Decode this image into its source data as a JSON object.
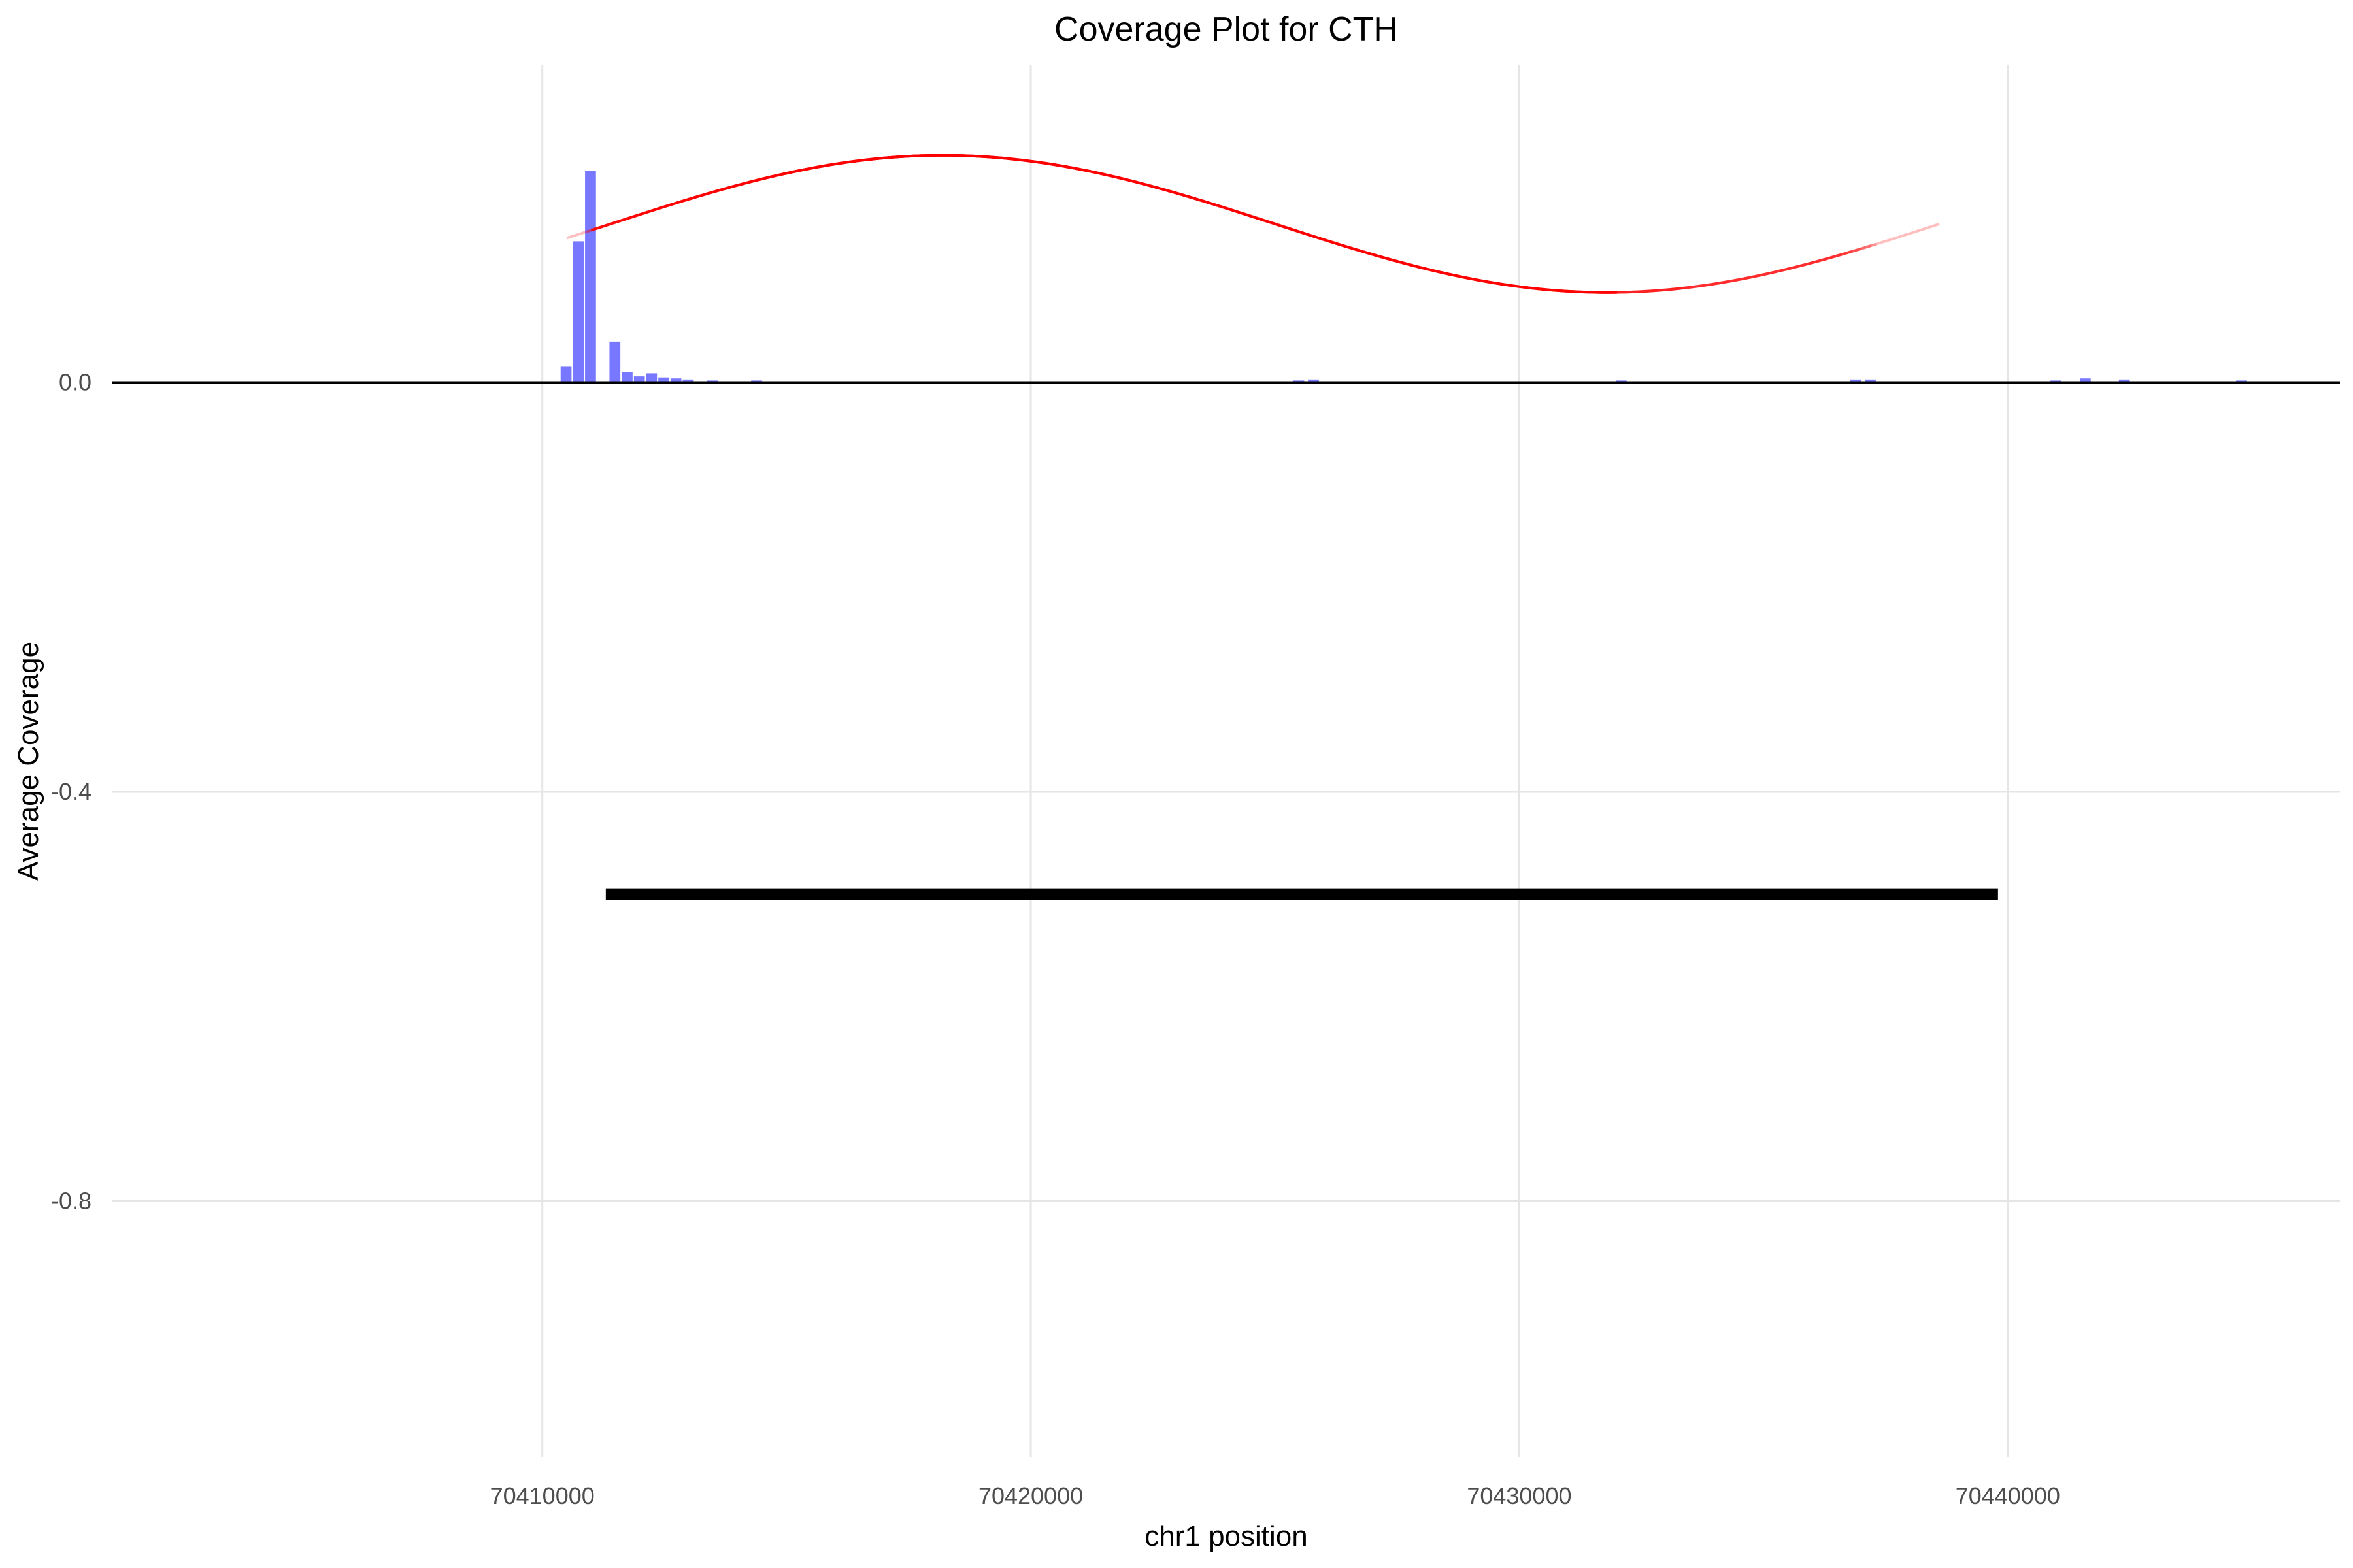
{
  "chart_data": {
    "type": "bar",
    "title": "Coverage Plot for CTH",
    "xlabel": "chr1 position",
    "ylabel": "Average Coverage",
    "xlim": [
      70401200,
      70446800
    ],
    "ylim": [
      -1.05,
      0.31
    ],
    "x_ticks": [
      70410000,
      70420000,
      70430000,
      70440000
    ],
    "x_tick_labels": [
      "70410000",
      "70420000",
      "70430000",
      "70440000"
    ],
    "y_ticks": [
      0.0,
      -0.4,
      -0.8
    ],
    "y_tick_labels": [
      "0.0",
      "-0.4",
      "-0.8"
    ],
    "grid": true,
    "legend": "none",
    "colors": {
      "coverage": "#7777ff",
      "junction": "#ff0000",
      "gene": "#000000",
      "grid": "#e5e5e5"
    },
    "coverage": {
      "bin_width": 250,
      "bins": [
        {
          "x": 70405400,
          "y": 0.001
        },
        {
          "x": 70406200,
          "y": 0.001
        },
        {
          "x": 70410500,
          "y": 0.016
        },
        {
          "x": 70410750,
          "y": 0.138
        },
        {
          "x": 70411000,
          "y": 0.207
        },
        {
          "x": 70411500,
          "y": 0.04
        },
        {
          "x": 70411750,
          "y": 0.01
        },
        {
          "x": 70412000,
          "y": 0.006
        },
        {
          "x": 70412250,
          "y": 0.009
        },
        {
          "x": 70412500,
          "y": 0.005
        },
        {
          "x": 70412750,
          "y": 0.004
        },
        {
          "x": 70413000,
          "y": 0.003
        },
        {
          "x": 70413500,
          "y": 0.002
        },
        {
          "x": 70414400,
          "y": 0.002
        },
        {
          "x": 70425500,
          "y": 0.002
        },
        {
          "x": 70425800,
          "y": 0.003
        },
        {
          "x": 70429000,
          "y": 0.001
        },
        {
          "x": 70432100,
          "y": 0.002
        },
        {
          "x": 70436900,
          "y": 0.003
        },
        {
          "x": 70437200,
          "y": 0.003
        },
        {
          "x": 70438600,
          "y": 0.001
        },
        {
          "x": 70441000,
          "y": 0.002
        },
        {
          "x": 70441600,
          "y": 0.004
        },
        {
          "x": 70442400,
          "y": 0.003
        },
        {
          "x": 70444800,
          "y": 0.002
        }
      ]
    },
    "junctions": [
      {
        "start": 70410500,
        "end": 70428200,
        "opacity": 0.25
      },
      {
        "start": 70410900,
        "end": 70427800,
        "opacity": 0.25
      },
      {
        "start": 70411000,
        "end": 70432000,
        "opacity": 0.9
      },
      {
        "start": 70411200,
        "end": 70429000,
        "opacity": 0.25
      },
      {
        "start": 70411500,
        "end": 70433400,
        "opacity": 0.25
      },
      {
        "start": 70411800,
        "end": 70436600,
        "opacity": 0.25
      },
      {
        "start": 70412200,
        "end": 70437000,
        "opacity": 0.25
      },
      {
        "start": 70412700,
        "end": 70436800,
        "opacity": 0.25
      },
      {
        "start": 70413100,
        "end": 70437200,
        "opacity": 0.25
      },
      {
        "start": 70413700,
        "end": 70438600,
        "opacity": 0.25
      },
      {
        "start": 70414400,
        "end": 70437300,
        "opacity": 0.25
      }
    ],
    "gene_model": {
      "start": 70411300,
      "end": 70439800,
      "y": -0.5
    }
  }
}
